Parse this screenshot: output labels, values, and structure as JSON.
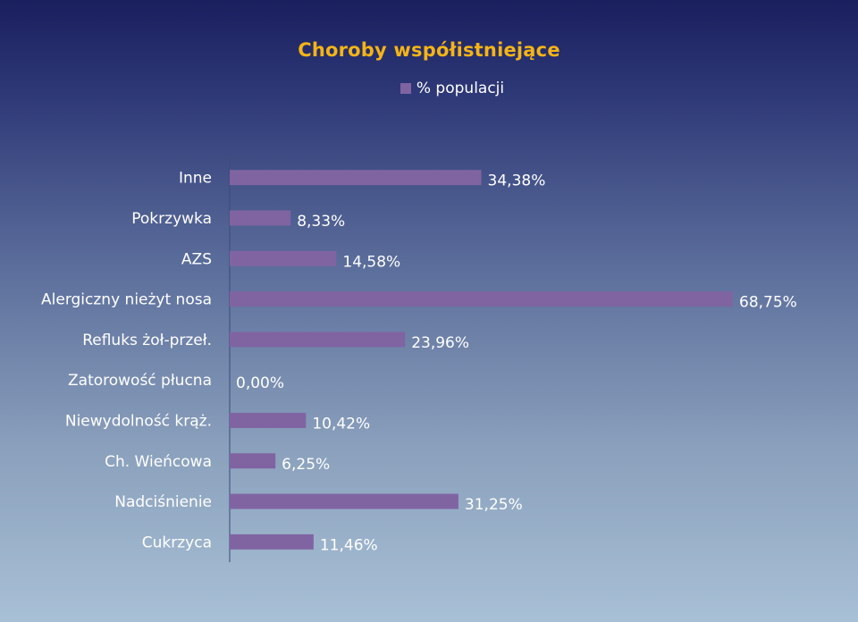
{
  "chart_data": {
    "type": "bar",
    "orientation": "horizontal",
    "title": "Choroby współistniejące",
    "legend": "% populacji",
    "legend_position": "top",
    "categories": [
      "Inne",
      "Pokrzywka",
      "AZS",
      "Alergiczny nieżyt nosa",
      "Refluks żoł-przeł.",
      "Zatorowość płucna",
      "Niewydolność krąż.",
      "Ch. Wieńcowa",
      "Nadciśnienie",
      "Cukrzyca"
    ],
    "values": [
      34.38,
      8.33,
      14.58,
      68.75,
      23.96,
      0.0,
      10.42,
      6.25,
      31.25,
      11.46
    ],
    "value_labels": [
      "34,38%",
      "8,33%",
      "14,58%",
      "68,75%",
      "23,96%",
      "0,00%",
      "10,42%",
      "6,25%",
      "31,25%",
      "11,46%"
    ],
    "series": [
      {
        "name": "% populacji",
        "values": [
          34.38,
          8.33,
          14.58,
          68.75,
          23.96,
          0.0,
          10.42,
          6.25,
          31.25,
          11.46
        ]
      }
    ],
    "xlim": [
      0,
      68.75
    ],
    "grid": false,
    "colors": {
      "bar": "#8064a2",
      "title": "#f5b416",
      "text": "#ffffff",
      "axis": "#3a4a78"
    }
  }
}
